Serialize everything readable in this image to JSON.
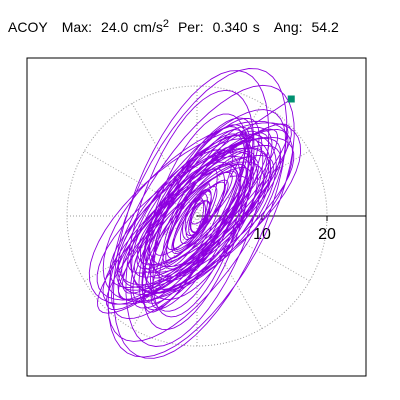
{
  "header": {
    "channel": "ACOY",
    "max_label": "Max:",
    "max_value": "24.0",
    "max_unit": "cm/s",
    "max_unit_exp": "2",
    "per_label": "Per:",
    "per_value": "0.340",
    "per_unit": "s",
    "ang_label": "Ang:",
    "ang_value": "54.2"
  },
  "chart_data": {
    "type": "scatter",
    "title": "ACOY",
    "radial_ticks": [
      10,
      20
    ],
    "radial_tick_labels": [
      "10",
      "20"
    ],
    "x_range": [
      -25,
      25
    ],
    "y_range": [
      -25,
      25
    ],
    "orbit_angle_deg": 54.2,
    "max_amplitude_cm_s2": 24.0,
    "end_marker": {
      "x": 14.5,
      "y": 18.0
    },
    "grid": "polar-dotted",
    "colors": {
      "trace": "#8e00e0",
      "marker": "#009070",
      "grid": "#999999"
    }
  }
}
